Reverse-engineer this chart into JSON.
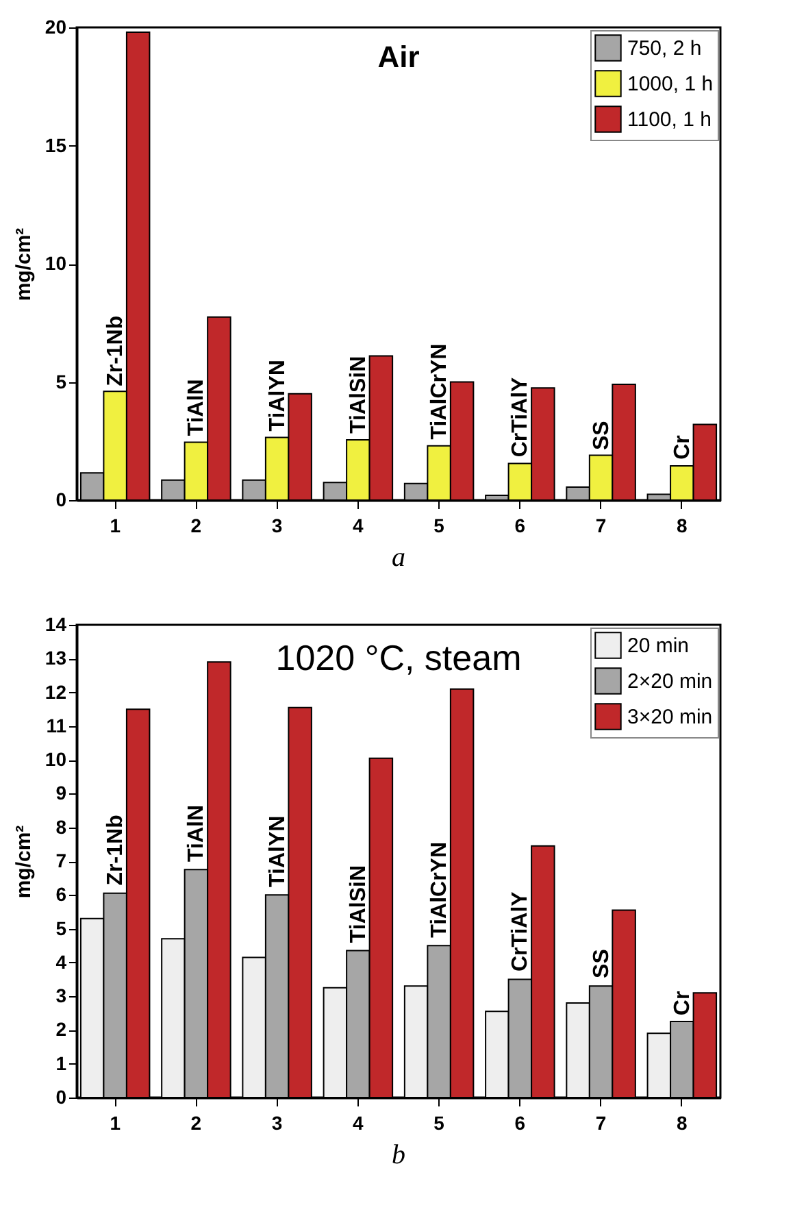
{
  "chart_data": [
    {
      "type": "bar",
      "categories": [
        "1",
        "2",
        "3",
        "4",
        "5",
        "6",
        "7",
        "8"
      ],
      "ylabel": "mg/cm²",
      "ylim": [
        0,
        20
      ],
      "yticks": [
        0,
        5,
        10,
        15,
        20
      ],
      "grid": false,
      "legend": "top right",
      "series": [
        {
          "name": "750, 2 h",
          "color": "#a6a6a6",
          "values": [
            1.15,
            0.85,
            0.85,
            0.75,
            0.7,
            0.2,
            0.55,
            0.25
          ]
        },
        {
          "name": "1000, 1 h",
          "color": "#f0f040",
          "values": [
            4.6,
            2.45,
            2.65,
            2.55,
            2.3,
            1.55,
            1.9,
            1.45
          ]
        },
        {
          "name": "1100, 1 h",
          "color": "#c0282a",
          "values": [
            19.8,
            7.75,
            4.5,
            6.1,
            5.0,
            4.75,
            4.9,
            3.2
          ]
        }
      ],
      "annotations": [
        "Air",
        "a",
        {
          "text": "Zr-1Nb",
          "x": "1",
          "y": 4.7
        },
        {
          "text": "TiAlN",
          "x": "2",
          "y": 2.6
        },
        {
          "text": "TiAlYN",
          "x": "3",
          "y": 2.8
        },
        {
          "text": "TiAlSiN",
          "x": "4",
          "y": 2.7
        },
        {
          "text": "TiAlCrYN",
          "x": "5",
          "y": 2.45
        },
        {
          "text": "CrTiAlY",
          "x": "6",
          "y": 1.7
        },
        {
          "text": "SS",
          "x": "7",
          "y": 2.0
        },
        {
          "text": "Cr",
          "x": "8",
          "y": 1.6
        }
      ]
    },
    {
      "type": "bar",
      "categories": [
        "1",
        "2",
        "3",
        "4",
        "5",
        "6",
        "7",
        "8"
      ],
      "ylabel": "mg/cm²",
      "ylim": [
        0,
        14
      ],
      "yticks": [
        0,
        1,
        2,
        3,
        4,
        5,
        6,
        7,
        8,
        9,
        10,
        11,
        12,
        13,
        14
      ],
      "grid": false,
      "legend": "top right",
      "series": [
        {
          "name": "20 min",
          "color": "#eeeeee",
          "values": [
            5.3,
            4.7,
            4.15,
            3.25,
            3.3,
            2.55,
            2.8,
            1.9
          ]
        },
        {
          "name": "2×20 min",
          "color": "#a6a6a6",
          "values": [
            6.05,
            6.75,
            6.0,
            4.35,
            4.5,
            3.5,
            3.3,
            2.25
          ]
        },
        {
          "name": "3×20 min",
          "color": "#c0282a",
          "values": [
            11.5,
            12.9,
            11.55,
            10.05,
            12.1,
            7.45,
            5.55,
            3.1
          ]
        }
      ],
      "annotations": [
        "1020 °C, steam",
        "b",
        {
          "text": "Zr-1Nb",
          "x": "1",
          "y": 6.2
        },
        {
          "text": "TiAlN",
          "x": "2",
          "y": 6.9
        },
        {
          "text": "TiAlYN",
          "x": "3",
          "y": 6.15
        },
        {
          "text": "TiAlSiN",
          "x": "4",
          "y": 4.5
        },
        {
          "text": "TiAlCrYN",
          "x": "5",
          "y": 4.65
        },
        {
          "text": "CrTiAlY",
          "x": "6",
          "y": 3.65
        },
        {
          "text": "SS",
          "x": "7",
          "y": 3.45
        },
        {
          "text": "Cr",
          "x": "8",
          "y": 2.35
        }
      ]
    }
  ]
}
